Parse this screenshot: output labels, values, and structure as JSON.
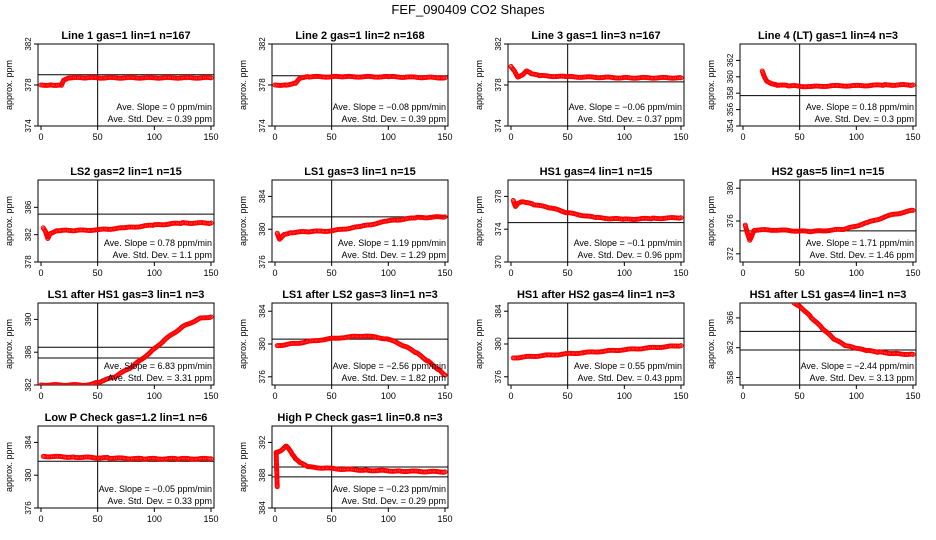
{
  "title": "FEF_090409  CO2 Shapes",
  "colors": {
    "points": "#ff0000",
    "axes": "#000000"
  },
  "chart_data": [
    {
      "type": "scatter",
      "title": "Line 1 gas=1 lin=1 n=167",
      "ylabel": "approx. ppm",
      "xlim": [
        0,
        150
      ],
      "ylim": [
        374,
        382
      ],
      "xticks": [
        0,
        50,
        100,
        150
      ],
      "yticks": [
        374,
        378,
        382
      ],
      "vline": 50,
      "hlines": [
        379
      ],
      "slope_text": "Ave. Slope =  0  ppm/min",
      "std_text": "Ave. Std. Dev. =  0.39  ppm",
      "points": [
        [
          0,
          378
        ],
        [
          10,
          378
        ],
        [
          18,
          378
        ],
        [
          20,
          378.5
        ],
        [
          25,
          378.7
        ],
        [
          40,
          378.7
        ],
        [
          75,
          378.7
        ],
        [
          110,
          378.7
        ],
        [
          150,
          378.7
        ]
      ]
    },
    {
      "type": "scatter",
      "title": "Line 2 gas=1 lin=2 n=168",
      "ylabel": "approx. ppm",
      "xlim": [
        0,
        150
      ],
      "ylim": [
        374,
        382
      ],
      "xticks": [
        0,
        50,
        100,
        150
      ],
      "yticks": [
        374,
        378,
        382
      ],
      "vline": 50,
      "hlines": [
        378.9
      ],
      "slope_text": "Ave. Slope = −0.08  ppm/min",
      "std_text": "Ave. Std. Dev. =  0.39  ppm",
      "points": [
        [
          0,
          378
        ],
        [
          10,
          378
        ],
        [
          18,
          378.2
        ],
        [
          22,
          378.7
        ],
        [
          30,
          378.8
        ],
        [
          60,
          378.8
        ],
        [
          100,
          378.8
        ],
        [
          150,
          378.7
        ]
      ]
    },
    {
      "type": "scatter",
      "title": "Line 3 gas=1 lin=3 n=167",
      "ylabel": "approx. ppm",
      "xlim": [
        0,
        150
      ],
      "ylim": [
        374,
        382
      ],
      "xticks": [
        0,
        50,
        100,
        150
      ],
      "yticks": [
        374,
        378,
        382
      ],
      "vline": 50,
      "hlines": [
        378.3
      ],
      "slope_text": "Ave. Slope = −0.06  ppm/min",
      "std_text": "Ave. Std. Dev. =  0.37  ppm",
      "points": [
        [
          0,
          379.8
        ],
        [
          3,
          379.4
        ],
        [
          6,
          378.8
        ],
        [
          10,
          379
        ],
        [
          14,
          379.4
        ],
        [
          18,
          379.1
        ],
        [
          25,
          378.9
        ],
        [
          50,
          378.8
        ],
        [
          100,
          378.7
        ],
        [
          150,
          378.7
        ]
      ]
    },
    {
      "type": "scatter",
      "title": "Line 4 (LT) gas=1 lin=4 n=3",
      "ylabel": "approx. ppm",
      "xlim": [
        0,
        150
      ],
      "ylim": [
        354,
        364
      ],
      "xticks": [
        0,
        50,
        100,
        150
      ],
      "yticks": [
        354,
        356,
        358,
        360,
        362
      ],
      "vline": 50,
      "hlines": [
        357.7
      ],
      "slope_text": "Ave. Slope =  0.18  ppm/min",
      "std_text": "Ave. Std. Dev. =  0.3  ppm",
      "points": [
        [
          17,
          360.7
        ],
        [
          19,
          360.0
        ],
        [
          21,
          359.5
        ],
        [
          25,
          359.2
        ],
        [
          30,
          359.0
        ],
        [
          40,
          358.9
        ],
        [
          60,
          358.8
        ],
        [
          80,
          358.9
        ],
        [
          100,
          358.9
        ],
        [
          125,
          359.0
        ],
        [
          150,
          359.0
        ]
      ]
    },
    {
      "type": "scatter",
      "title": "LS2 gas=2 lin=1 n=15",
      "ylabel": "approx. ppm",
      "xlim": [
        0,
        150
      ],
      "ylim": [
        378,
        390
      ],
      "xticks": [
        0,
        50,
        100,
        150
      ],
      "yticks": [
        378,
        382,
        386
      ],
      "vline": 50,
      "hlines": [
        385
      ],
      "slope_text": "Ave. Slope =  0.78  ppm/min",
      "std_text": "Ave. Std. Dev. =  1.1  ppm",
      "points": [
        [
          2,
          383.0
        ],
        [
          4,
          382.5
        ],
        [
          6,
          381.5
        ],
        [
          8,
          382.2
        ],
        [
          15,
          382.6
        ],
        [
          30,
          382.6
        ],
        [
          50,
          382.7
        ],
        [
          75,
          383.0
        ],
        [
          100,
          383.4
        ],
        [
          125,
          383.7
        ],
        [
          150,
          383.7
        ]
      ]
    },
    {
      "type": "scatter",
      "title": "LS1 gas=3 lin=1 n=15",
      "ylabel": "approx. ppm",
      "xlim": [
        0,
        150
      ],
      "ylim": [
        376,
        386
      ],
      "xticks": [
        0,
        50,
        100,
        150
      ],
      "yticks": [
        376,
        380,
        384
      ],
      "vline": 50,
      "hlines": [
        381.5
      ],
      "slope_text": "Ave. Slope =  1.19  ppm/min",
      "std_text": "Ave. Std. Dev. =  1.29  ppm",
      "points": [
        [
          2,
          379.5
        ],
        [
          4,
          378.8
        ],
        [
          8,
          379.4
        ],
        [
          15,
          379.6
        ],
        [
          30,
          379.7
        ],
        [
          50,
          379.8
        ],
        [
          75,
          380.3
        ],
        [
          100,
          381.0
        ],
        [
          125,
          381.4
        ],
        [
          150,
          381.5
        ]
      ]
    },
    {
      "type": "scatter",
      "title": "HS1 gas=4 lin=1 n=15",
      "ylabel": "approx. ppm",
      "xlim": [
        0,
        150
      ],
      "ylim": [
        370,
        380
      ],
      "xticks": [
        0,
        50,
        100,
        150
      ],
      "yticks": [
        370,
        374,
        378
      ],
      "vline": 50,
      "hlines": [
        374.8
      ],
      "slope_text": "Ave. Slope = −0.1  ppm/min",
      "std_text": "Ave. Std. Dev. =  0.96  ppm",
      "points": [
        [
          2,
          377.5
        ],
        [
          4,
          376.8
        ],
        [
          6,
          377.2
        ],
        [
          10,
          377.4
        ],
        [
          20,
          377.0
        ],
        [
          35,
          376.6
        ],
        [
          50,
          376.0
        ],
        [
          75,
          375.4
        ],
        [
          100,
          375.2
        ],
        [
          125,
          375.3
        ],
        [
          150,
          375.4
        ]
      ]
    },
    {
      "type": "scatter",
      "title": "HS2 gas=5 lin=1 n=15",
      "ylabel": "approx. ppm",
      "xlim": [
        0,
        150
      ],
      "ylim": [
        371,
        381
      ],
      "xticks": [
        0,
        50,
        100,
        150
      ],
      "yticks": [
        372,
        376,
        380
      ],
      "vline": 50,
      "hlines": [
        374.8
      ],
      "slope_text": "Ave. Slope =  1.71  ppm/min",
      "std_text": "Ave. Std. Dev. =  1.46  ppm",
      "points": [
        [
          2,
          375.5
        ],
        [
          4,
          374.5
        ],
        [
          6,
          373.7
        ],
        [
          10,
          374.9
        ],
        [
          30,
          374.9
        ],
        [
          60,
          374.7
        ],
        [
          90,
          375.0
        ],
        [
          110,
          375.8
        ],
        [
          130,
          376.7
        ],
        [
          150,
          377.3
        ]
      ]
    },
    {
      "type": "scatter",
      "title": "LS1 after HS1 gas=3 lin=1 n=3",
      "ylabel": "approx. ppm",
      "xlim": [
        0,
        150
      ],
      "ylim": [
        382,
        392
      ],
      "xticks": [
        0,
        50,
        100,
        150
      ],
      "yticks": [
        382,
        386,
        390
      ],
      "vline": 50,
      "hlines": [
        386.6,
        385.3
      ],
      "slope_text": "Ave. Slope =  6.83  ppm/min",
      "std_text": "Ave. Std. Dev. =  3.31  ppm",
      "points": [
        [
          0,
          382
        ],
        [
          40,
          382
        ],
        [
          50,
          382.3
        ],
        [
          65,
          383.0
        ],
        [
          80,
          384.2
        ],
        [
          95,
          385.8
        ],
        [
          110,
          387.6
        ],
        [
          125,
          389.1
        ],
        [
          140,
          390.1
        ],
        [
          150,
          390.3
        ]
      ]
    },
    {
      "type": "scatter",
      "title": "LS1 after LS2 gas=3 lin=1 n=3",
      "ylabel": "approx. ppm",
      "xlim": [
        0,
        150
      ],
      "ylim": [
        375,
        385
      ],
      "xticks": [
        0,
        50,
        100,
        150
      ],
      "yticks": [
        376,
        380,
        384
      ],
      "vline": 50,
      "hlines": [
        380.6
      ],
      "slope_text": "Ave. Slope = −2.56  ppm/min",
      "std_text": "Ave. Std. Dev. =  1.82  ppm",
      "points": [
        [
          2,
          379.8
        ],
        [
          20,
          380.1
        ],
        [
          40,
          380.5
        ],
        [
          60,
          380.8
        ],
        [
          80,
          381.0
        ],
        [
          100,
          380.6
        ],
        [
          115,
          379.7
        ],
        [
          125,
          378.9
        ],
        [
          135,
          377.9
        ],
        [
          145,
          376.8
        ],
        [
          150,
          376.2
        ]
      ]
    },
    {
      "type": "scatter",
      "title": "HS1 after HS2 gas=4 lin=1 n=3",
      "ylabel": "approx. ppm",
      "xlim": [
        0,
        150
      ],
      "ylim": [
        375,
        385
      ],
      "xticks": [
        0,
        50,
        100,
        150
      ],
      "yticks": [
        376,
        380,
        384
      ],
      "vline": 50,
      "hlines": [
        380.7
      ],
      "slope_text": "Ave. Slope =  0.55  ppm/min",
      "std_text": "Ave. Std. Dev. =  0.43  ppm",
      "points": [
        [
          2,
          378.3
        ],
        [
          20,
          378.5
        ],
        [
          40,
          378.7
        ],
        [
          60,
          378.9
        ],
        [
          80,
          379.1
        ],
        [
          100,
          379.3
        ],
        [
          120,
          379.5
        ],
        [
          150,
          379.8
        ]
      ]
    },
    {
      "type": "scatter",
      "title": "HS1 after LS1 gas=4 lin=1 n=3",
      "ylabel": "approx. ppm",
      "xlim": [
        0,
        150
      ],
      "ylim": [
        357,
        368
      ],
      "xticks": [
        0,
        50,
        100,
        150
      ],
      "yticks": [
        358,
        362,
        366
      ],
      "vline": 50,
      "hlines": [
        364.2,
        361.7
      ],
      "slope_text": "Ave. Slope = −2.44  ppm/min",
      "std_text": "Ave. Std. Dev. =  3.13  ppm",
      "points": [
        [
          45,
          368
        ],
        [
          50,
          367.6
        ],
        [
          60,
          366.1
        ],
        [
          70,
          364.6
        ],
        [
          80,
          363.2
        ],
        [
          90,
          362.3
        ],
        [
          100,
          361.9
        ],
        [
          110,
          361.6
        ],
        [
          120,
          361.4
        ],
        [
          135,
          361.2
        ],
        [
          150,
          361.1
        ]
      ]
    },
    {
      "type": "scatter",
      "title": "Low P Check gas=1.2 lin=1 n=6",
      "ylabel": "approx. ppm",
      "xlim": [
        0,
        150
      ],
      "ylim": [
        376,
        386
      ],
      "xticks": [
        0,
        50,
        100,
        150
      ],
      "yticks": [
        376,
        380,
        384
      ],
      "vline": 50,
      "hlines": [
        381.7
      ],
      "slope_text": "Ave. Slope = −0.05  ppm/min",
      "std_text": "Ave. Std. Dev. =  0.33  ppm",
      "points": [
        [
          2,
          382.3
        ],
        [
          30,
          382.2
        ],
        [
          60,
          382.1
        ],
        [
          90,
          382.0
        ],
        [
          120,
          382.0
        ],
        [
          150,
          382.0
        ]
      ]
    },
    {
      "type": "scatter",
      "title": "High P Check gas=1 lin=0.8 n=3",
      "ylabel": "approx. ppm",
      "xlim": [
        0,
        150
      ],
      "ylim": [
        384,
        394
      ],
      "xticks": [
        0,
        50,
        100,
        150
      ],
      "yticks": [
        384,
        388,
        392
      ],
      "vline": 50,
      "hlines": [
        389.0,
        387.8
      ],
      "slope_text": "Ave. Slope = −0.23  ppm/min",
      "std_text": "Ave. Std. Dev. =  0.29  ppm",
      "points": [
        [
          2,
          386.6
        ],
        [
          1,
          390.8
        ],
        [
          5,
          391.0
        ],
        [
          10,
          391.6
        ],
        [
          12,
          391.3
        ],
        [
          15,
          390.6
        ],
        [
          18,
          390.0
        ],
        [
          22,
          389.5
        ],
        [
          30,
          389.0
        ],
        [
          50,
          388.8
        ],
        [
          80,
          388.6
        ],
        [
          110,
          388.5
        ],
        [
          150,
          388.4
        ]
      ]
    }
  ]
}
